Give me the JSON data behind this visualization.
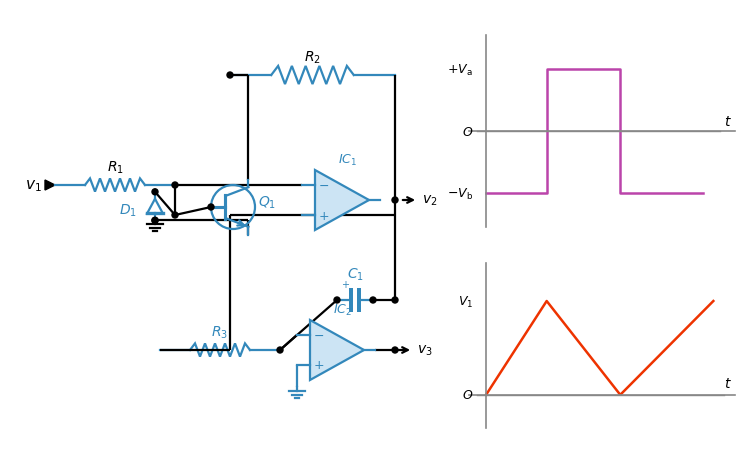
{
  "bg_color": "#ffffff",
  "circuit_color": "#000000",
  "component_color": "#3388bb",
  "square_wave_color": "#bb44aa",
  "triangle_wave_color": "#ee3300",
  "axis_color": "#888888",
  "fig_width": 7.5,
  "fig_height": 4.56,
  "dpi": 100,
  "lw_wire": 1.6,
  "lw_comp": 1.6,
  "opamp_fill": "#cce4f4",
  "dot_r": 3.0
}
